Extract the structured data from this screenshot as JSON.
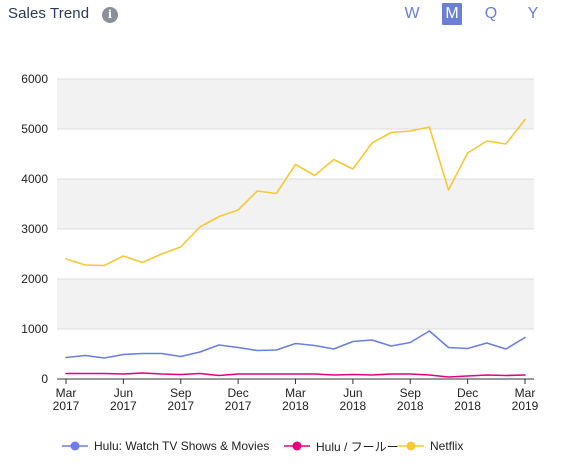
{
  "header": {
    "title": "Sales Trend",
    "info_icon": "info-icon",
    "periods": [
      {
        "label": "W",
        "active": false
      },
      {
        "label": "M",
        "active": true
      },
      {
        "label": "Q",
        "active": false
      },
      {
        "label": "Y",
        "active": false
      }
    ]
  },
  "colors": {
    "hulu_watch": "#6b7de8",
    "hulu_jp": "#e6007e",
    "netflix": "#f7c932",
    "band": "#f2f2f2",
    "grid": "#dddddd",
    "axis": "#333333"
  },
  "chart_data": {
    "type": "line",
    "x": [
      "2017-03",
      "2017-04",
      "2017-05",
      "2017-06",
      "2017-07",
      "2017-08",
      "2017-09",
      "2017-10",
      "2017-11",
      "2017-12",
      "2018-01",
      "2018-02",
      "2018-03",
      "2018-04",
      "2018-05",
      "2018-06",
      "2018-07",
      "2018-08",
      "2018-09",
      "2018-10",
      "2018-11",
      "2018-12",
      "2019-01",
      "2019-02",
      "2019-03"
    ],
    "x_tick_labels": [
      {
        "month": "Mar",
        "year": "2017"
      },
      {
        "month": "Jun",
        "year": "2017"
      },
      {
        "month": "Sep",
        "year": "2017"
      },
      {
        "month": "Dec",
        "year": "2017"
      },
      {
        "month": "Mar",
        "year": "2018"
      },
      {
        "month": "Jun",
        "year": "2018"
      },
      {
        "month": "Sep",
        "year": "2018"
      },
      {
        "month": "Dec",
        "year": "2018"
      },
      {
        "month": "Mar",
        "year": "2019"
      }
    ],
    "y_ticks": [
      0,
      1000,
      2000,
      3000,
      4000,
      5000,
      6000
    ],
    "ylim": [
      0,
      6000
    ],
    "grid": true,
    "legend_position": "bottom",
    "series": [
      {
        "name": "Hulu: Watch TV Shows & Movies",
        "color": "#6b7de8",
        "values": [
          430,
          470,
          420,
          490,
          510,
          510,
          450,
          540,
          680,
          630,
          570,
          580,
          710,
          670,
          600,
          750,
          780,
          660,
          730,
          960,
          630,
          610,
          720,
          600,
          830
        ]
      },
      {
        "name": "Hulu / フールー",
        "color": "#e6007e",
        "values": [
          110,
          110,
          110,
          100,
          120,
          100,
          90,
          110,
          70,
          100,
          100,
          100,
          100,
          100,
          80,
          90,
          80,
          100,
          100,
          80,
          40,
          60,
          80,
          70,
          80
        ]
      },
      {
        "name": "Netflix",
        "color": "#f7c932",
        "values": [
          2400,
          2280,
          2270,
          2460,
          2330,
          2500,
          2640,
          3040,
          3250,
          3380,
          3760,
          3710,
          4290,
          4070,
          4390,
          4200,
          4720,
          4930,
          4960,
          5040,
          3780,
          4520,
          4760,
          4700,
          5190
        ]
      }
    ]
  }
}
